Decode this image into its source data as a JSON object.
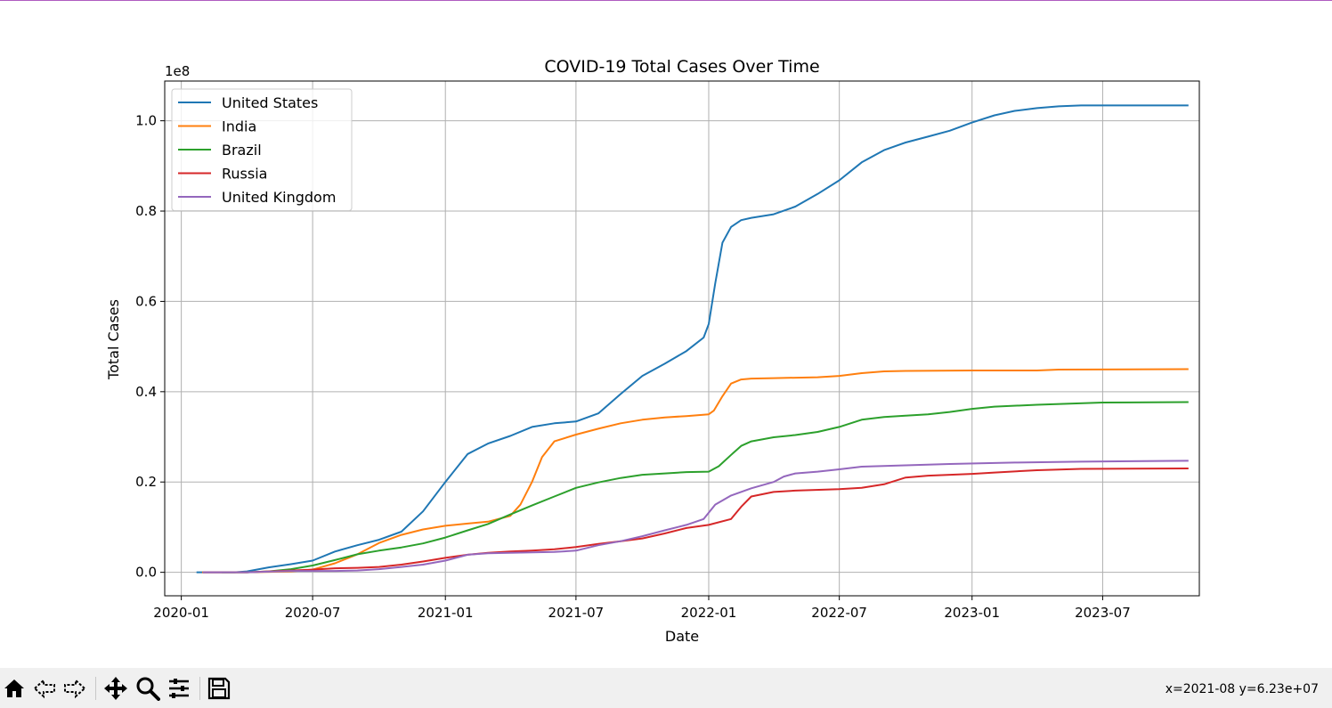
{
  "chart_data": {
    "type": "line",
    "title": "COVID-19 Total Cases Over Time",
    "xlabel": "Date",
    "ylabel": "Total Cases",
    "y_offset_label": "1e8",
    "y_scale_factor": 100000000,
    "xlim": [
      "2019-12-09",
      "2023-11-12"
    ],
    "ylim": [
      -0.052,
      1.088
    ],
    "x_ticks": [
      {
        "date": "2020-01-01",
        "label": "2020-01"
      },
      {
        "date": "2020-07-01",
        "label": "2020-07"
      },
      {
        "date": "2021-01-01",
        "label": "2021-01"
      },
      {
        "date": "2021-07-01",
        "label": "2021-07"
      },
      {
        "date": "2022-01-01",
        "label": "2022-01"
      },
      {
        "date": "2022-07-01",
        "label": "2022-07"
      },
      {
        "date": "2023-01-01",
        "label": "2023-01"
      },
      {
        "date": "2023-07-01",
        "label": "2023-07"
      }
    ],
    "y_ticks": [
      {
        "value": 0.0,
        "label": "0.0"
      },
      {
        "value": 0.2,
        "label": "0.2"
      },
      {
        "value": 0.4,
        "label": "0.4"
      },
      {
        "value": 0.6,
        "label": "0.6"
      },
      {
        "value": 0.8,
        "label": "0.8"
      },
      {
        "value": 1.0,
        "label": "1.0"
      }
    ],
    "grid": true,
    "legend_position": "upper-left",
    "series": [
      {
        "name": "United States",
        "color": "#1f77b4",
        "points": [
          [
            "2020-01-22",
            0.0
          ],
          [
            "2020-03-15",
            0.0
          ],
          [
            "2020-04-01",
            0.002
          ],
          [
            "2020-05-01",
            0.011
          ],
          [
            "2020-06-01",
            0.018
          ],
          [
            "2020-07-01",
            0.026
          ],
          [
            "2020-08-01",
            0.046
          ],
          [
            "2020-09-01",
            0.06
          ],
          [
            "2020-10-01",
            0.072
          ],
          [
            "2020-11-01",
            0.09
          ],
          [
            "2020-12-01",
            0.135
          ],
          [
            "2021-01-01",
            0.2
          ],
          [
            "2021-02-01",
            0.262
          ],
          [
            "2021-03-01",
            0.285
          ],
          [
            "2021-04-01",
            0.302
          ],
          [
            "2021-05-01",
            0.322
          ],
          [
            "2021-06-01",
            0.33
          ],
          [
            "2021-07-01",
            0.334
          ],
          [
            "2021-08-01",
            0.352
          ],
          [
            "2021-09-01",
            0.395
          ],
          [
            "2021-10-01",
            0.435
          ],
          [
            "2021-11-01",
            0.462
          ],
          [
            "2021-12-01",
            0.49
          ],
          [
            "2021-12-25",
            0.52
          ],
          [
            "2022-01-01",
            0.55
          ],
          [
            "2022-01-10",
            0.64
          ],
          [
            "2022-01-20",
            0.73
          ],
          [
            "2022-02-01",
            0.765
          ],
          [
            "2022-02-15",
            0.78
          ],
          [
            "2022-03-01",
            0.785
          ],
          [
            "2022-04-01",
            0.793
          ],
          [
            "2022-05-01",
            0.81
          ],
          [
            "2022-06-01",
            0.838
          ],
          [
            "2022-07-01",
            0.868
          ],
          [
            "2022-08-01",
            0.908
          ],
          [
            "2022-09-01",
            0.935
          ],
          [
            "2022-10-01",
            0.952
          ],
          [
            "2022-11-01",
            0.965
          ],
          [
            "2022-12-01",
            0.978
          ],
          [
            "2023-01-01",
            0.996
          ],
          [
            "2023-02-01",
            1.012
          ],
          [
            "2023-03-01",
            1.022
          ],
          [
            "2023-04-01",
            1.028
          ],
          [
            "2023-05-01",
            1.032
          ],
          [
            "2023-06-01",
            1.034
          ],
          [
            "2023-10-28",
            1.034
          ]
        ]
      },
      {
        "name": "India",
        "color": "#ff7f0e",
        "points": [
          [
            "2020-01-30",
            0.0
          ],
          [
            "2020-04-01",
            0.0
          ],
          [
            "2020-06-01",
            0.002
          ],
          [
            "2020-07-01",
            0.006
          ],
          [
            "2020-08-01",
            0.02
          ],
          [
            "2020-09-01",
            0.04
          ],
          [
            "2020-10-01",
            0.065
          ],
          [
            "2020-11-01",
            0.083
          ],
          [
            "2020-12-01",
            0.095
          ],
          [
            "2021-01-01",
            0.103
          ],
          [
            "2021-02-01",
            0.108
          ],
          [
            "2021-03-01",
            0.112
          ],
          [
            "2021-04-01",
            0.125
          ],
          [
            "2021-04-15",
            0.15
          ],
          [
            "2021-05-01",
            0.2
          ],
          [
            "2021-05-15",
            0.255
          ],
          [
            "2021-06-01",
            0.29
          ],
          [
            "2021-07-01",
            0.305
          ],
          [
            "2021-08-01",
            0.318
          ],
          [
            "2021-09-01",
            0.33
          ],
          [
            "2021-10-01",
            0.338
          ],
          [
            "2021-11-01",
            0.343
          ],
          [
            "2021-12-01",
            0.346
          ],
          [
            "2022-01-01",
            0.35
          ],
          [
            "2022-01-08",
            0.358
          ],
          [
            "2022-01-20",
            0.39
          ],
          [
            "2022-02-01",
            0.418
          ],
          [
            "2022-02-15",
            0.427
          ],
          [
            "2022-03-01",
            0.429
          ],
          [
            "2022-04-01",
            0.43
          ],
          [
            "2022-06-01",
            0.432
          ],
          [
            "2022-07-01",
            0.435
          ],
          [
            "2022-08-01",
            0.441
          ],
          [
            "2022-09-01",
            0.445
          ],
          [
            "2022-10-01",
            0.446
          ],
          [
            "2023-01-01",
            0.447
          ],
          [
            "2023-04-01",
            0.447
          ],
          [
            "2023-05-01",
            0.449
          ],
          [
            "2023-10-28",
            0.45
          ]
        ]
      },
      {
        "name": "Brazil",
        "color": "#2ca02c",
        "points": [
          [
            "2020-02-26",
            0.0
          ],
          [
            "2020-04-01",
            0.0
          ],
          [
            "2020-05-01",
            0.002
          ],
          [
            "2020-06-01",
            0.007
          ],
          [
            "2020-07-01",
            0.015
          ],
          [
            "2020-08-01",
            0.027
          ],
          [
            "2020-09-01",
            0.04
          ],
          [
            "2020-10-01",
            0.048
          ],
          [
            "2020-11-01",
            0.055
          ],
          [
            "2020-12-01",
            0.064
          ],
          [
            "2021-01-01",
            0.077
          ],
          [
            "2021-02-01",
            0.093
          ],
          [
            "2021-03-01",
            0.107
          ],
          [
            "2021-04-01",
            0.128
          ],
          [
            "2021-05-01",
            0.148
          ],
          [
            "2021-06-01",
            0.168
          ],
          [
            "2021-07-01",
            0.187
          ],
          [
            "2021-08-01",
            0.199
          ],
          [
            "2021-09-01",
            0.209
          ],
          [
            "2021-10-01",
            0.216
          ],
          [
            "2021-11-01",
            0.219
          ],
          [
            "2021-12-01",
            0.222
          ],
          [
            "2022-01-01",
            0.223
          ],
          [
            "2022-01-15",
            0.235
          ],
          [
            "2022-02-01",
            0.26
          ],
          [
            "2022-02-15",
            0.28
          ],
          [
            "2022-03-01",
            0.29
          ],
          [
            "2022-04-01",
            0.299
          ],
          [
            "2022-05-01",
            0.304
          ],
          [
            "2022-06-01",
            0.311
          ],
          [
            "2022-07-01",
            0.322
          ],
          [
            "2022-08-01",
            0.338
          ],
          [
            "2022-09-01",
            0.344
          ],
          [
            "2022-10-01",
            0.347
          ],
          [
            "2022-11-01",
            0.35
          ],
          [
            "2022-12-01",
            0.355
          ],
          [
            "2023-01-01",
            0.362
          ],
          [
            "2023-02-01",
            0.367
          ],
          [
            "2023-04-01",
            0.371
          ],
          [
            "2023-07-01",
            0.376
          ],
          [
            "2023-10-28",
            0.377
          ]
        ]
      },
      {
        "name": "Russia",
        "color": "#d62728",
        "points": [
          [
            "2020-01-31",
            0.0
          ],
          [
            "2020-04-01",
            0.0
          ],
          [
            "2020-05-01",
            0.002
          ],
          [
            "2020-06-01",
            0.004
          ],
          [
            "2020-07-01",
            0.006
          ],
          [
            "2020-08-01",
            0.009
          ],
          [
            "2020-09-01",
            0.01
          ],
          [
            "2020-10-01",
            0.012
          ],
          [
            "2020-11-01",
            0.017
          ],
          [
            "2020-12-01",
            0.024
          ],
          [
            "2021-01-01",
            0.032
          ],
          [
            "2021-02-01",
            0.039
          ],
          [
            "2021-03-01",
            0.043
          ],
          [
            "2021-04-01",
            0.046
          ],
          [
            "2021-05-01",
            0.048
          ],
          [
            "2021-06-01",
            0.051
          ],
          [
            "2021-07-01",
            0.056
          ],
          [
            "2021-08-01",
            0.063
          ],
          [
            "2021-09-01",
            0.069
          ],
          [
            "2021-10-01",
            0.075
          ],
          [
            "2021-11-01",
            0.086
          ],
          [
            "2021-12-01",
            0.098
          ],
          [
            "2022-01-01",
            0.105
          ],
          [
            "2022-02-01",
            0.118
          ],
          [
            "2022-02-15",
            0.145
          ],
          [
            "2022-03-01",
            0.168
          ],
          [
            "2022-04-01",
            0.178
          ],
          [
            "2022-05-01",
            0.181
          ],
          [
            "2022-07-01",
            0.184
          ],
          [
            "2022-08-01",
            0.187
          ],
          [
            "2022-09-01",
            0.195
          ],
          [
            "2022-10-01",
            0.21
          ],
          [
            "2022-11-01",
            0.214
          ],
          [
            "2023-01-01",
            0.218
          ],
          [
            "2023-02-01",
            0.221
          ],
          [
            "2023-04-01",
            0.226
          ],
          [
            "2023-06-01",
            0.229
          ],
          [
            "2023-10-28",
            0.23
          ]
        ]
      },
      {
        "name": "United Kingdom",
        "color": "#9467bd",
        "points": [
          [
            "2020-01-31",
            0.0
          ],
          [
            "2020-04-01",
            0.0
          ],
          [
            "2020-06-01",
            0.003
          ],
          [
            "2020-07-01",
            0.003
          ],
          [
            "2020-08-01",
            0.003
          ],
          [
            "2020-09-01",
            0.004
          ],
          [
            "2020-10-01",
            0.007
          ],
          [
            "2020-11-01",
            0.012
          ],
          [
            "2020-12-01",
            0.017
          ],
          [
            "2021-01-01",
            0.026
          ],
          [
            "2021-02-01",
            0.039
          ],
          [
            "2021-03-01",
            0.042
          ],
          [
            "2021-05-01",
            0.044
          ],
          [
            "2021-06-01",
            0.045
          ],
          [
            "2021-07-01",
            0.048
          ],
          [
            "2021-08-01",
            0.06
          ],
          [
            "2021-09-01",
            0.069
          ],
          [
            "2021-10-01",
            0.08
          ],
          [
            "2021-11-01",
            0.093
          ],
          [
            "2021-12-01",
            0.105
          ],
          [
            "2021-12-25",
            0.118
          ],
          [
            "2022-01-10",
            0.15
          ],
          [
            "2022-02-01",
            0.17
          ],
          [
            "2022-03-01",
            0.186
          ],
          [
            "2022-04-01",
            0.2
          ],
          [
            "2022-04-15",
            0.212
          ],
          [
            "2022-05-01",
            0.219
          ],
          [
            "2022-06-01",
            0.223
          ],
          [
            "2022-07-01",
            0.228
          ],
          [
            "2022-08-01",
            0.234
          ],
          [
            "2022-10-01",
            0.237
          ],
          [
            "2022-12-01",
            0.24
          ],
          [
            "2023-03-01",
            0.243
          ],
          [
            "2023-06-01",
            0.245
          ],
          [
            "2023-10-28",
            0.247
          ]
        ]
      }
    ]
  },
  "toolbar": {
    "buttons": [
      {
        "name": "home-icon",
        "label": "Home"
      },
      {
        "name": "back-icon",
        "label": "Back"
      },
      {
        "name": "forward-icon",
        "label": "Forward"
      },
      {
        "name": "pan-icon",
        "label": "Pan"
      },
      {
        "name": "zoom-icon",
        "label": "Zoom"
      },
      {
        "name": "configure-subplots-icon",
        "label": "Configure subplots"
      },
      {
        "name": "save-icon",
        "label": "Save"
      }
    ],
    "coordinates": "x=2021-08 y=6.23e+07"
  }
}
